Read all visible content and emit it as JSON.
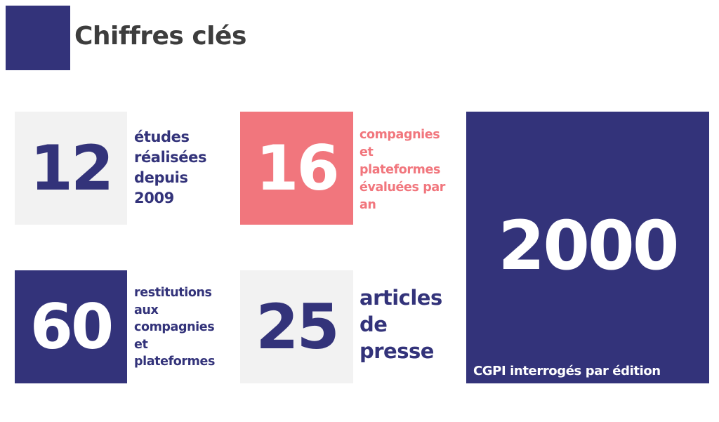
{
  "header": {
    "title": "Chiffres clés",
    "accent_color": "#33337a"
  },
  "stats": {
    "etudes": {
      "value": "12",
      "label": "études\nréalisées\ndepuis\n2009"
    },
    "compagnies": {
      "value": "16",
      "label": "compagnies\net\nplateformes\névaluées par\nan"
    },
    "restitutions": {
      "value": "60",
      "label": "restitutions\naux\ncompagnies\net\nplateformes"
    },
    "articles": {
      "value": "25",
      "label": "articles\nde\npresse"
    },
    "cgpi": {
      "value": "2000",
      "label": "CGPI interrogés par édition"
    }
  },
  "colors": {
    "navy": "#33337a",
    "coral": "#f1767d",
    "light_gray": "#f2f2f2",
    "title_text": "#3d3d3d"
  }
}
